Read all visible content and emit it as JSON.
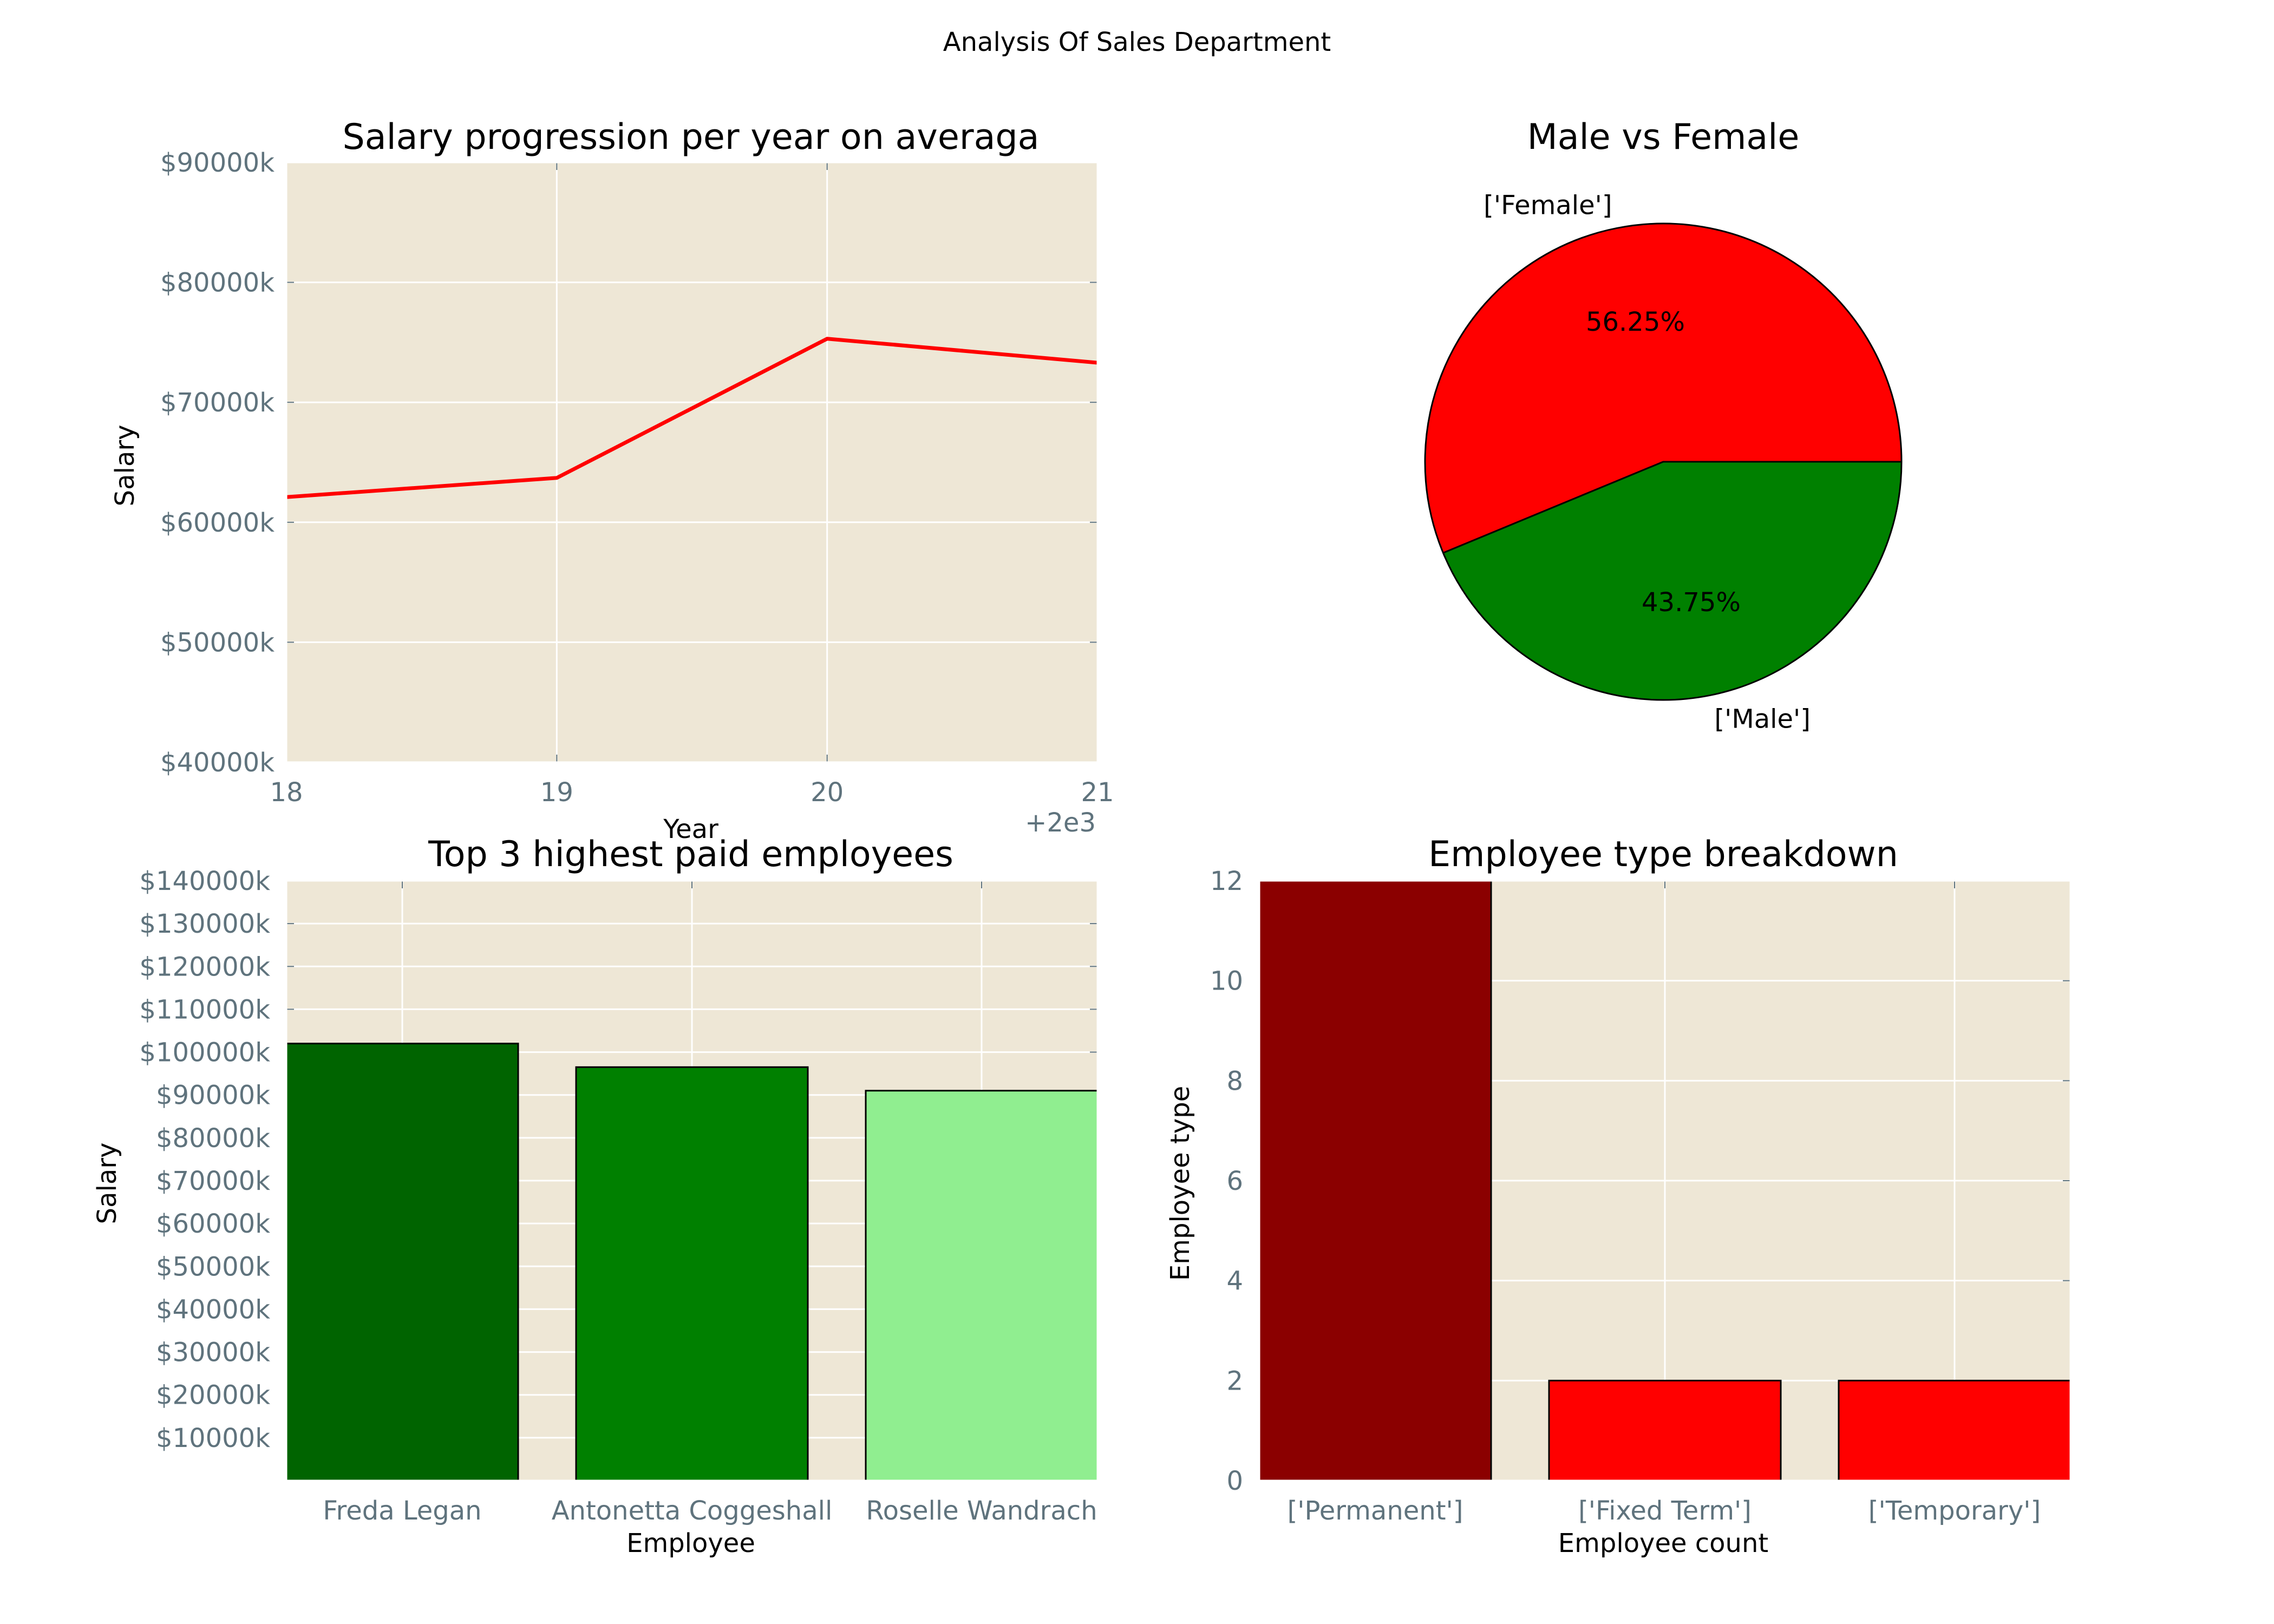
{
  "suptitle": "Analysis Of Sales Department",
  "colors": {
    "plot_bg": "#eee7d6",
    "grid": "#ffffff",
    "tick_text": "#5f737d",
    "line": "#ff0000",
    "female": "#ff0000",
    "male": "#008000",
    "bar_top1": "#006400",
    "bar_top2": "#008000",
    "bar_top3": "#90ee90",
    "permanent": "#8b0000",
    "fixed_term": "#ff0000",
    "temporary": "#ff0000"
  },
  "chart_data": [
    {
      "type": "line",
      "title": "Salary progression per year on averaga",
      "xlabel": "Year",
      "ylabel": "Salary",
      "x": [
        18,
        19,
        20,
        21
      ],
      "x_tick_labels": [
        "18",
        "19",
        "20",
        "21"
      ],
      "x_offset_label": "+2e3",
      "values": [
        62100,
        63700,
        75300,
        73300
      ],
      "ylim": [
        40000,
        90000
      ],
      "y_ticks": [
        40000,
        50000,
        60000,
        70000,
        80000,
        90000
      ],
      "y_tick_labels": [
        "$40000k",
        "$50000k",
        "$60000k",
        "$70000k",
        "$80000k",
        "$90000k"
      ],
      "grid": true
    },
    {
      "type": "pie",
      "title": "Male vs Female",
      "labels": [
        "['Female']",
        "['Male']"
      ],
      "values": [
        56.25,
        43.75
      ],
      "autopct_labels": [
        "56.25%",
        "43.75%"
      ],
      "colors": [
        "#ff0000",
        "#008000"
      ]
    },
    {
      "type": "bar",
      "title": "Top 3 highest paid employees",
      "xlabel": "Employee",
      "ylabel": "Salary",
      "categories": [
        "Freda Legan",
        "Antonetta  Coggeshall",
        "Roselle Wandrach"
      ],
      "values": [
        102000,
        96500,
        91000
      ],
      "ylim": [
        0,
        140000
      ],
      "y_ticks": [
        10000,
        20000,
        30000,
        40000,
        50000,
        60000,
        70000,
        80000,
        90000,
        100000,
        110000,
        120000,
        130000,
        140000
      ],
      "y_tick_labels": [
        "$10000k",
        "$20000k",
        "$30000k",
        "$40000k",
        "$50000k",
        "$60000k",
        "$70000k",
        "$80000k",
        "$90000k",
        "$100000k",
        "$110000k",
        "$120000k",
        "$130000k",
        "$140000k"
      ],
      "colors": [
        "#006400",
        "#008000",
        "#90ee90"
      ],
      "grid": true
    },
    {
      "type": "bar",
      "title": "Employee type breakdown",
      "xlabel": "Employee count",
      "ylabel": "Employee type",
      "categories": [
        "['Permanent']",
        "['Fixed Term']",
        "['Temporary']"
      ],
      "values": [
        12,
        2,
        2
      ],
      "ylim": [
        0,
        12
      ],
      "y_ticks": [
        0,
        2,
        4,
        6,
        8,
        10,
        12
      ],
      "y_tick_labels": [
        "0",
        "2",
        "4",
        "6",
        "8",
        "10",
        "12"
      ],
      "colors": [
        "#8b0000",
        "#ff0000",
        "#ff0000"
      ],
      "grid": true
    }
  ]
}
